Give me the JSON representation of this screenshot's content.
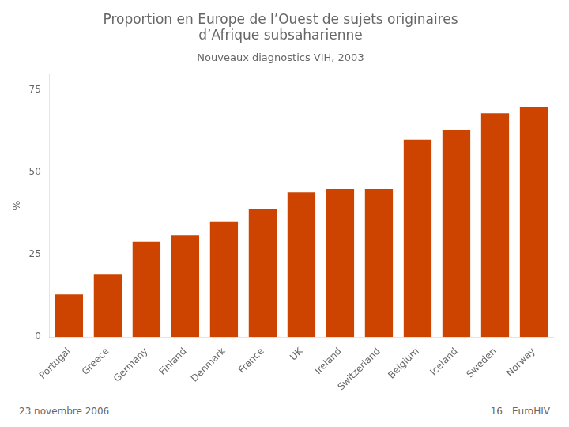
{
  "chart_data": {
    "type": "bar",
    "title": [
      "Proportion en Europe de l’Ouest de sujets originaires",
      "d’Afrique subsaharienne"
    ],
    "subtitle": "Nouveaux diagnostics VIH, 2003",
    "ylabel": "%",
    "categories": [
      "Portugal",
      "Greece",
      "Germany",
      "Finland",
      "Denmark",
      "France",
      "UK",
      "Ireland",
      "Switzerland",
      "Belgium",
      "Iceland",
      "Sweden",
      "Norway"
    ],
    "values": [
      13,
      19,
      29,
      31,
      35,
      39,
      44,
      45,
      45,
      60,
      63,
      68,
      70
    ],
    "color": "#CC4400",
    "ylim": [
      0,
      80
    ],
    "yticks": [
      0,
      25,
      50,
      75
    ],
    "grid": false,
    "annotations": [
      "23 novembre 2006",
      "16",
      "EuroHIV"
    ]
  }
}
